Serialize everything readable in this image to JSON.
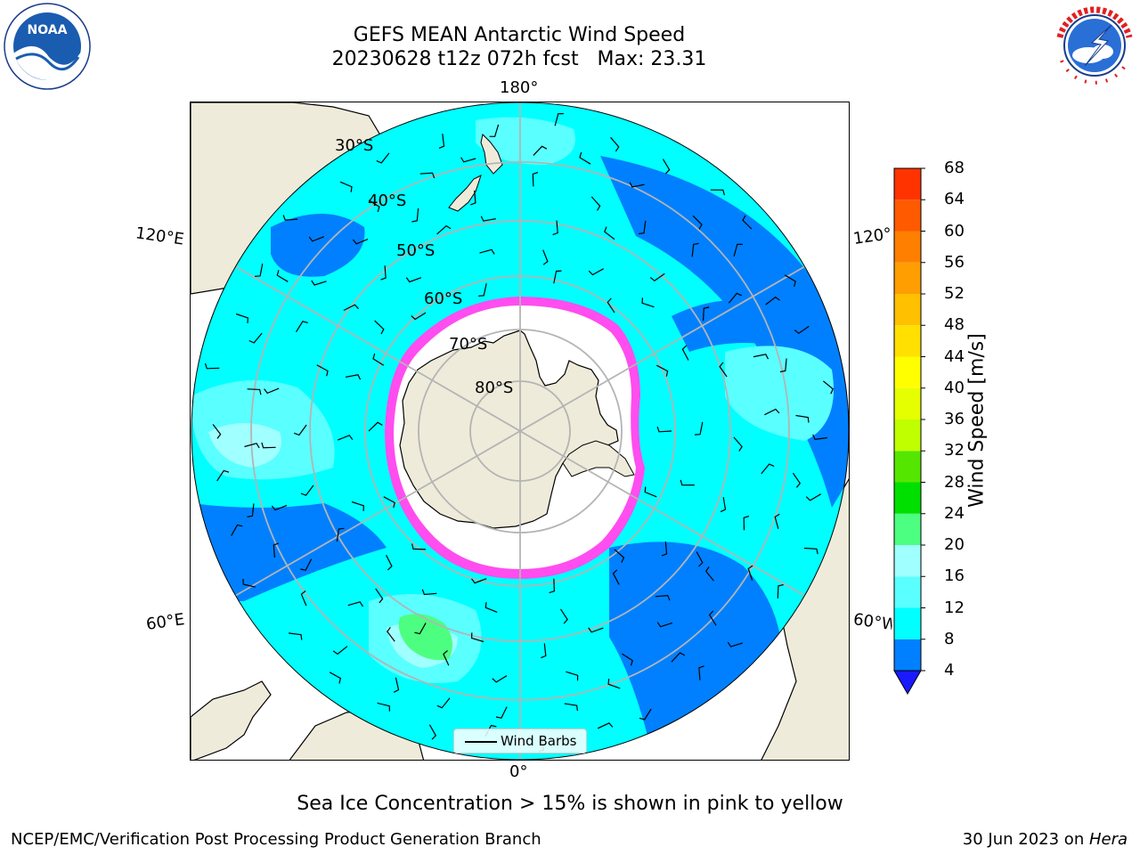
{
  "title": {
    "line1": "GEFS MEAN Antarctic Wind Speed",
    "line2": "20230628 t12z 072h fcst   Max: 23.31"
  },
  "logos": {
    "left": "noaa-logo",
    "right": "nws-logo",
    "left_text": "NOAA",
    "right_text": "NATIONAL WEATHER SERVICE"
  },
  "map": {
    "projection": "south-polar-stereographic",
    "lon_labels": {
      "top": "180°",
      "bottom": "0°",
      "upper_left": "120°E",
      "upper_right": "120°W",
      "lower_left": "60°E",
      "lower_right": "60°W"
    },
    "lat_labels": [
      "30°S",
      "40°S",
      "50°S",
      "60°S",
      "70°S",
      "80°S"
    ],
    "colors": {
      "land": "#efebda",
      "ocean_light": "#00ffff",
      "ocean_mid": "#5affff",
      "ocean_pale": "#a0ffff",
      "ocean_dark": "#0080ff",
      "ice": "#ffffff",
      "ice_edge": "#ff4df0",
      "gridline": "#b4b4b4"
    }
  },
  "legend": {
    "label": "Wind Barbs"
  },
  "colorbar": {
    "label": "Wind Speed [m/s]",
    "ticks": [
      "4",
      "8",
      "12",
      "16",
      "20",
      "24",
      "28",
      "32",
      "36",
      "40",
      "44",
      "48",
      "52",
      "56",
      "60",
      "64",
      "68"
    ],
    "colors": [
      "#0080ff",
      "#00ffff",
      "#5affff",
      "#a0ffff",
      "#4dff80",
      "#00e000",
      "#55e600",
      "#c0ff00",
      "#e6ff00",
      "#ffff00",
      "#ffe000",
      "#ffc000",
      "#ff9e00",
      "#ff7f00",
      "#ff5a00",
      "#ff3300",
      "#ff0000"
    ],
    "extend_color": "#1a1aff"
  },
  "note": "Sea Ice Concentration > 15% is shown in pink to yellow",
  "footer": {
    "left": "NCEP/EMC/Verification Post Processing Product Generation Branch",
    "right_date": "30 Jun 2023 on ",
    "right_machine": "Hera"
  }
}
